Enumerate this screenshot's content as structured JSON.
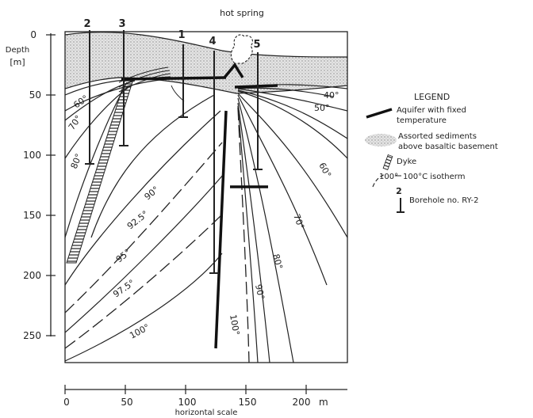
{
  "figure": {
    "hot_spring_label": "hot spring",
    "depth_label_line1": "Depth",
    "depth_label_line2": "[m]",
    "horizontal_scale_label": "horizontal scale",
    "m_unit": "m",
    "depth_ticks": [
      "0",
      "50",
      "100",
      "150",
      "200",
      "250"
    ],
    "distance_ticks": [
      "0",
      "50",
      "100",
      "150",
      "200"
    ],
    "boreholes": [
      {
        "no": "2",
        "x_m": 20,
        "bottom_depth_m": 108
      },
      {
        "no": "3",
        "x_m": 48,
        "bottom_depth_m": 92
      },
      {
        "no": "1",
        "x_m": 96,
        "bottom_depth_m": 68
      },
      {
        "no": "4",
        "x_m": 124,
        "bottom_depth_m": 197
      },
      {
        "no": "5",
        "x_m": 160,
        "bottom_depth_m": 113
      }
    ],
    "isotherm_labels": {
      "left": [
        "60°",
        "70°",
        "80°",
        "90°",
        "92.5°",
        "95°",
        "97.5°",
        "100°"
      ],
      "right": [
        "40°",
        "50°",
        "60°",
        "70°",
        "80°",
        "90°",
        "100°"
      ]
    },
    "colors": {
      "ink": "#222222",
      "sediment_fill": "#d9d9d9",
      "background": "#ffffff"
    }
  },
  "legend": {
    "title": "LEGEND",
    "items": [
      {
        "line1": "Aquifer with fixed",
        "line2": "temperature"
      },
      {
        "line1": "Assorted sediments",
        "line2": "above basaltic basement"
      },
      {
        "line1": "Dyke",
        "line2": ""
      },
      {
        "line1": "100°C isotherm",
        "line2": "",
        "sample": "100°"
      },
      {
        "line1": "Borehole no. RY-2",
        "line2": "",
        "sample": "2"
      }
    ]
  }
}
